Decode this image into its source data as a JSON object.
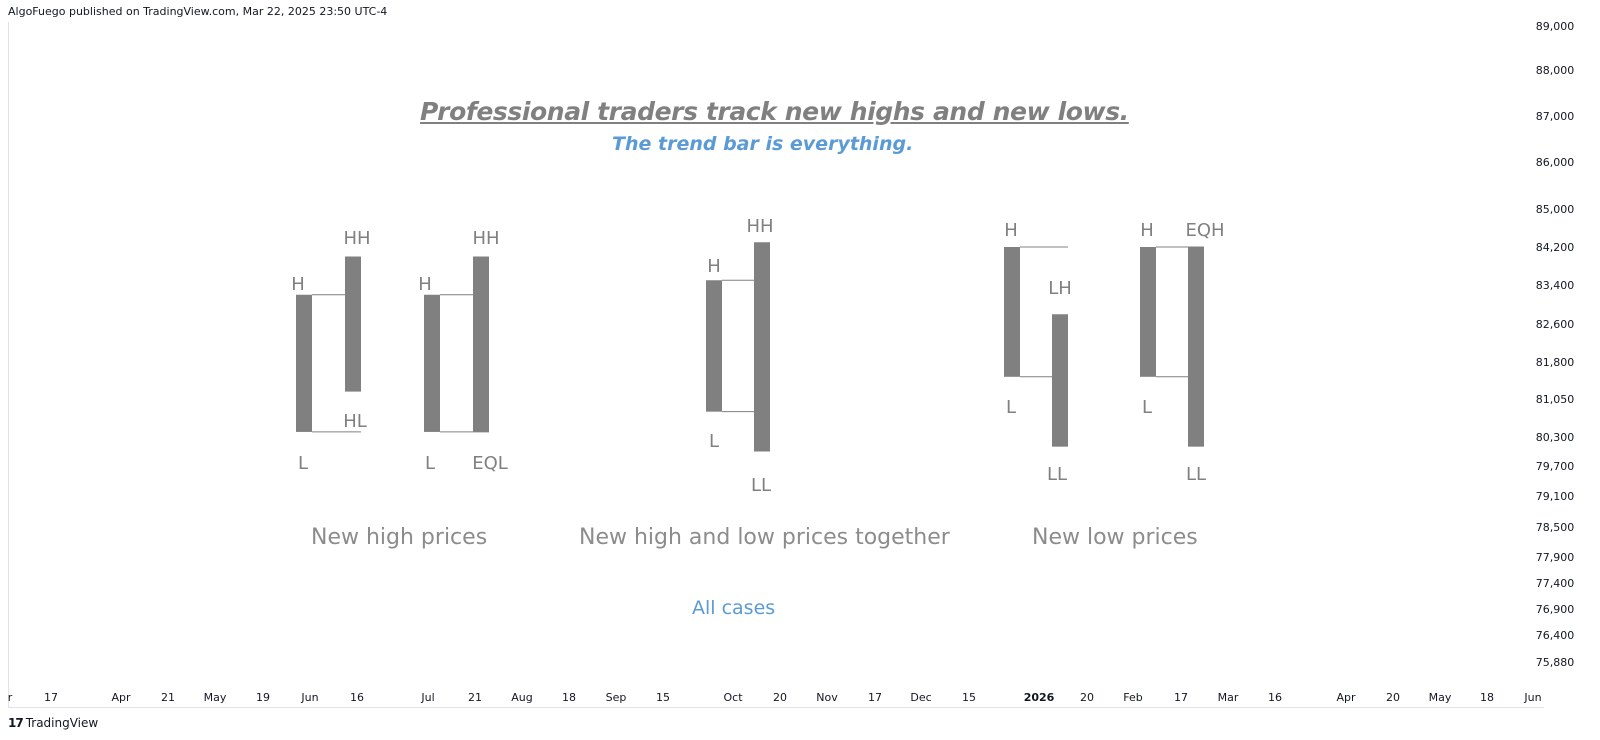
{
  "header": {
    "text": "AlgoFuego published on TradingView.com, Mar 22, 2025 23:50 UTC-4"
  },
  "footer": {
    "logo": "17",
    "brand": "TradingView"
  },
  "annotations": {
    "title": "Professional traders track new highs and new lows.",
    "subtitle": "The trend bar is everything.",
    "case_new_high": "New high prices",
    "case_both": "New high and low prices together",
    "case_new_low": "New low prices",
    "all_cases": "All cases"
  },
  "colors": {
    "bar": "#808080",
    "label": "#808080",
    "accent": "#5b9bd5",
    "axis_text": "#131722",
    "frame": "#e0e3eb"
  },
  "chart_data": {
    "type": "bar",
    "y_axis": {
      "ticks": [
        89000,
        88000,
        87000,
        86000,
        85000,
        84200,
        83400,
        82600,
        81800,
        81050,
        80300,
        79700,
        79100,
        78500,
        77900,
        77400,
        76900,
        76400,
        75880
      ],
      "tick_labels": [
        "89,000",
        "88,000",
        "87,000",
        "86,000",
        "85,000",
        "84,200",
        "83,400",
        "82,600",
        "81,800",
        "81,050",
        "80,300",
        "79,700",
        "79,100",
        "78,500",
        "77,900",
        "77,400",
        "76,900",
        "76,400",
        "75,880"
      ]
    },
    "x_axis": {
      "tick_labels": [
        "r",
        "17",
        "Apr",
        "21",
        "May",
        "19",
        "Jun",
        "16",
        "Jul",
        "21",
        "Aug",
        "18",
        "Sep",
        "15",
        "Oct",
        "20",
        "Nov",
        "17",
        "Dec",
        "15",
        "2026",
        "20",
        "Feb",
        "17",
        "Mar",
        "16",
        "Apr",
        "20",
        "May",
        "18",
        "Jun"
      ],
      "bold_labels": [
        "2026"
      ]
    },
    "bars": [
      {
        "date": "Jun 2025",
        "high": 83200,
        "low": 80400
      },
      {
        "date": "Jun 2025",
        "high": 84000,
        "low": 81200
      },
      {
        "date": "Jul 2025",
        "high": 83200,
        "low": 80400
      },
      {
        "date": "Jul 2025",
        "high": 84000,
        "low": 80400
      },
      {
        "date": "Oct 2025",
        "high": 83500,
        "low": 80800
      },
      {
        "date": "Oct 2025",
        "high": 84300,
        "low": 80000
      },
      {
        "date": "Jan 2026",
        "high": 84200,
        "low": 81500
      },
      {
        "date": "Jan 2026",
        "high": 82800,
        "low": 80100
      },
      {
        "date": "Feb 2026",
        "high": 84200,
        "low": 81500
      },
      {
        "date": "Feb 2026",
        "high": 84200,
        "low": 80100
      }
    ],
    "bar_labels": [
      "H",
      "HH",
      "HL",
      "L",
      "H",
      "HH",
      "L",
      "EQL",
      "H",
      "HH",
      "L",
      "LL",
      "H",
      "LH",
      "L",
      "LL",
      "H",
      "EQH",
      "L",
      "LL"
    ]
  }
}
